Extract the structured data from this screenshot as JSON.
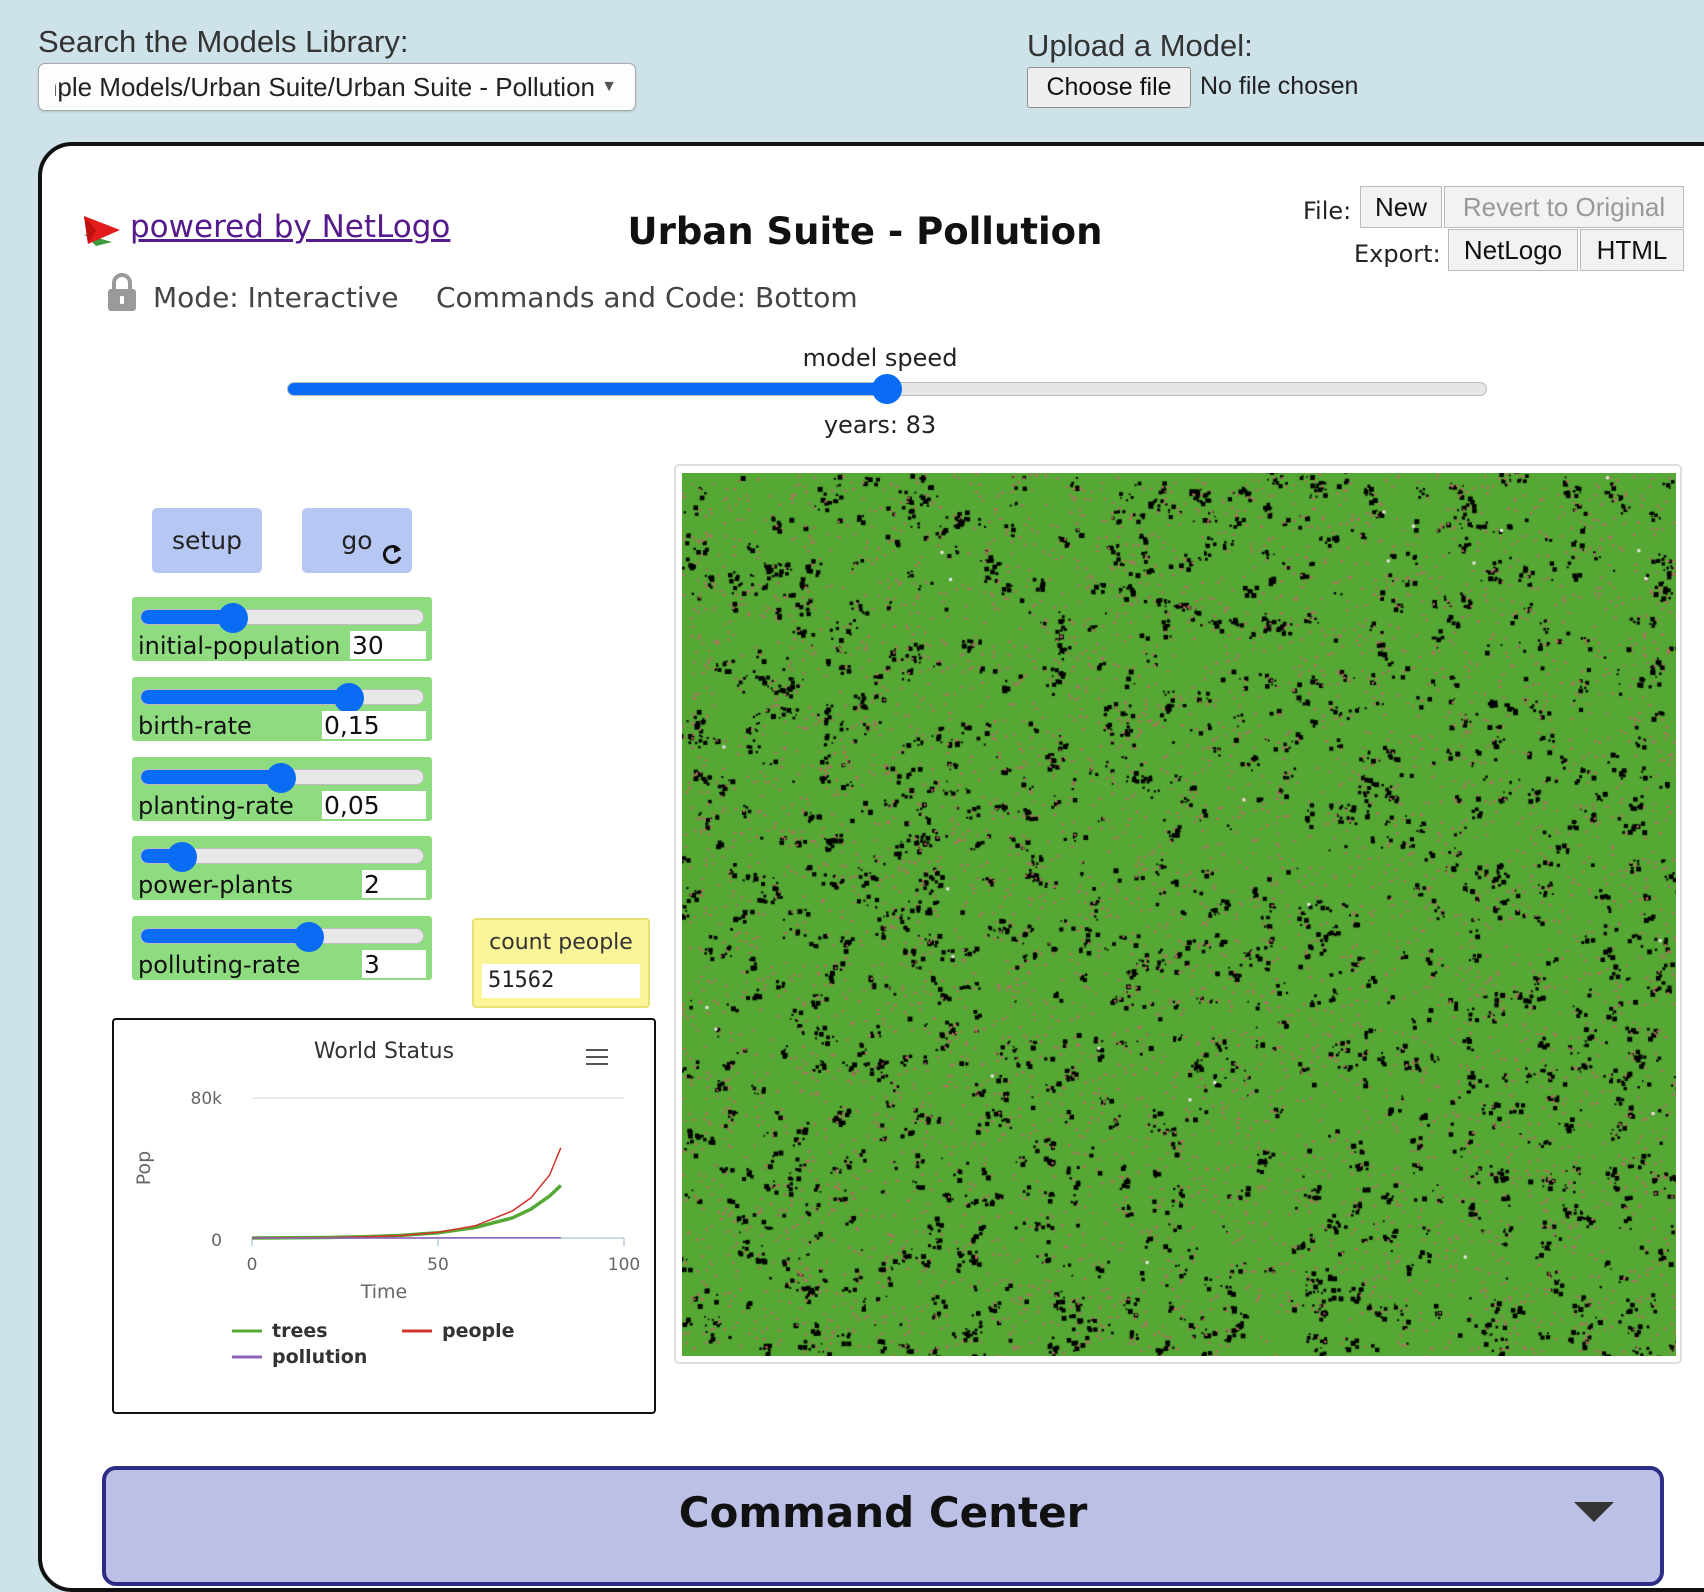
{
  "topbar": {
    "search_label": "Search the Models Library:",
    "selected_model": "Sample Models/Urban Suite/Urban Suite - Pollution",
    "upload_label": "Upload a Model:",
    "choose_file_label": "Choose file",
    "no_file_text": "No file chosen"
  },
  "header": {
    "powered_by": "powered by NetLogo",
    "title": "Urban Suite - Pollution",
    "mode_label": "Mode: Interactive",
    "commands_label": "Commands and Code: Bottom",
    "file_label": "File:",
    "export_label": "Export:",
    "new_label": "New",
    "revert_label": "Revert to Original",
    "netlogo_label": "NetLogo",
    "html_label": "HTML"
  },
  "speed": {
    "label": "model speed",
    "value_fraction": 0.5,
    "ticks_text": "years: 83"
  },
  "buttons": {
    "setup_label": "setup",
    "go_label": "go"
  },
  "sliders": [
    {
      "name": "initial-population",
      "value": "30",
      "fraction": 0.33
    },
    {
      "name": "birth-rate",
      "value": "0,15",
      "fraction": 0.74
    },
    {
      "name": "planting-rate",
      "value": "0,05",
      "fraction": 0.5
    },
    {
      "name": "power-plants",
      "value": "2",
      "fraction": 0.15
    },
    {
      "name": "polluting-rate",
      "value": "3",
      "fraction": 0.6
    }
  ],
  "monitor": {
    "label": "count people",
    "value": "51562"
  },
  "plot_menu_icon": "hamburger-menu-icon",
  "chart_data": {
    "type": "line",
    "title": "World Status",
    "xlabel": "Time",
    "ylabel": "Pop",
    "xlim": [
      0,
      100
    ],
    "ylim": [
      0,
      80000
    ],
    "x_ticks": [
      "0",
      "50",
      "100"
    ],
    "y_ticks": [
      "0",
      "80k"
    ],
    "legend_position": "bottom",
    "series": [
      {
        "name": "trees",
        "color": "#55a834",
        "x": [
          0,
          10,
          20,
          30,
          40,
          50,
          60,
          70,
          75,
          80,
          83
        ],
        "values": [
          0,
          100,
          300,
          700,
          1500,
          3000,
          6000,
          11500,
          16500,
          24000,
          30000
        ]
      },
      {
        "name": "people",
        "color": "#d0342c",
        "x": [
          0,
          10,
          20,
          30,
          40,
          50,
          60,
          70,
          75,
          80,
          83
        ],
        "values": [
          30,
          100,
          250,
          600,
          1400,
          3200,
          7000,
          15500,
          23000,
          36000,
          51562
        ]
      },
      {
        "name": "pollution",
        "color": "#8e63b8",
        "x": [
          0,
          20,
          40,
          60,
          83
        ],
        "values": [
          0,
          0,
          0,
          100,
          200
        ]
      }
    ]
  },
  "world": {
    "background_color": "#55a834",
    "person_color": "#b86b66",
    "pollution_color": "#000000"
  },
  "command_center": {
    "title": "Command Center"
  }
}
